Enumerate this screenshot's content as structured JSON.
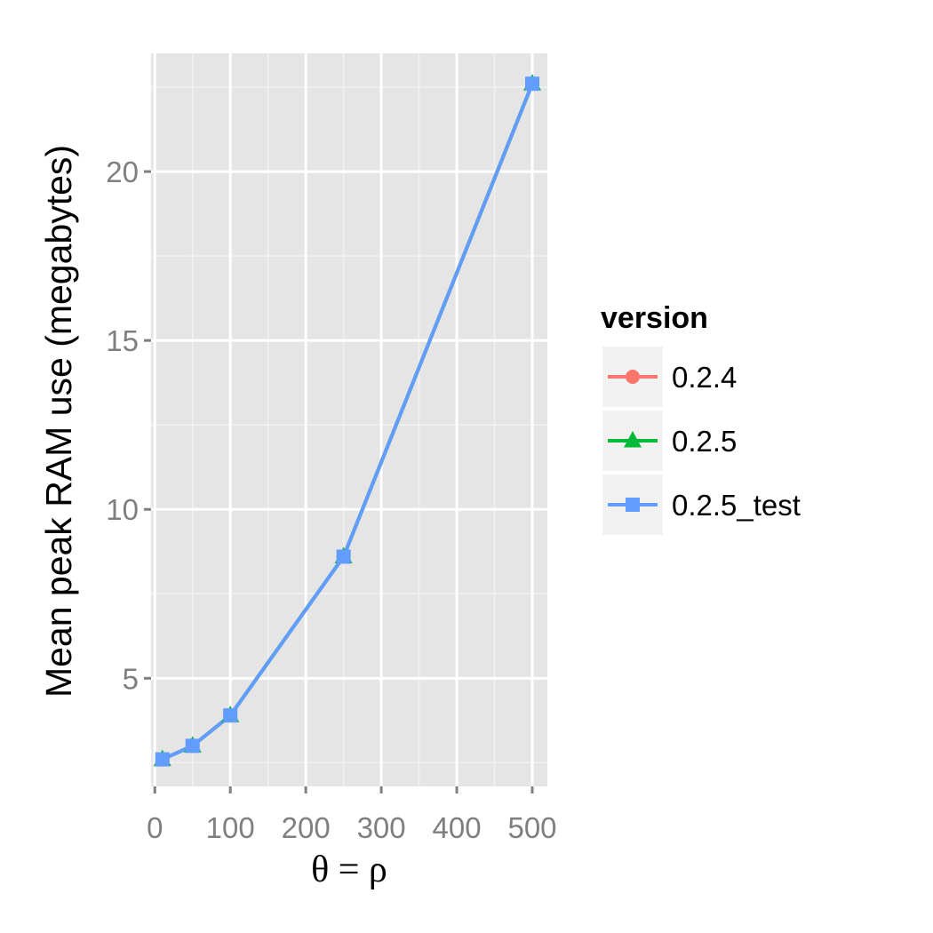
{
  "chart_data": {
    "type": "line",
    "xlabel": "θ = ρ",
    "ylabel": "Mean peak RAM use (megabytes)",
    "xlim": [
      -5,
      520
    ],
    "ylim": [
      1.8,
      23.5
    ],
    "x_ticks": [
      0,
      100,
      200,
      300,
      400,
      500
    ],
    "y_ticks": [
      5,
      10,
      15,
      20
    ],
    "x_tick_labels": [
      "0",
      "100",
      "200",
      "300",
      "400",
      "500"
    ],
    "y_tick_labels": [
      "5",
      "10",
      "15",
      "20"
    ],
    "grid": true,
    "legend": {
      "title": "version",
      "placement": "right"
    },
    "series": [
      {
        "name": "0.2.4",
        "color": "#F8766D",
        "marker": "circle",
        "x": [
          10,
          50,
          100,
          250,
          500
        ],
        "y": [
          2.6,
          3.0,
          3.9,
          8.6,
          22.6
        ]
      },
      {
        "name": "0.2.5",
        "color": "#00BA38",
        "marker": "triangle",
        "x": [
          10,
          50,
          100,
          250,
          500
        ],
        "y": [
          2.6,
          3.0,
          3.9,
          8.6,
          22.6
        ]
      },
      {
        "name": "0.2.5_test",
        "color": "#619CFF",
        "marker": "square",
        "x": [
          10,
          50,
          100,
          250,
          500
        ],
        "y": [
          2.6,
          3.0,
          3.9,
          8.6,
          22.6
        ]
      }
    ]
  }
}
